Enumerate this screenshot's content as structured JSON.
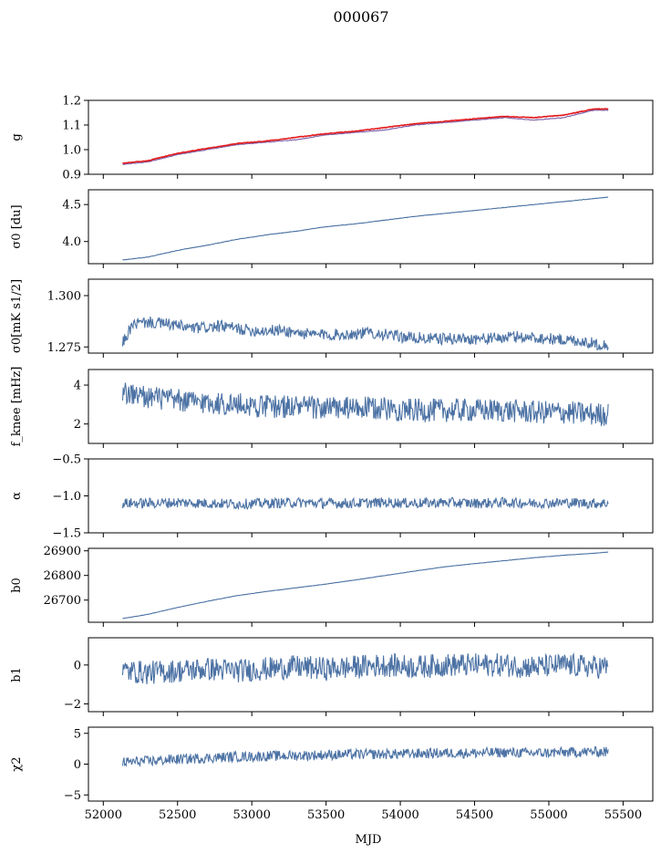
{
  "figure": {
    "title": "000067",
    "xlabel": "MJD",
    "xlim": [
      51900,
      55700
    ],
    "xticks": [
      52000,
      52500,
      53000,
      53500,
      54000,
      54500,
      55000,
      55500
    ],
    "series_color": "#4c72a4",
    "accent_color": "#e31a1c",
    "x_start": 52130,
    "x_end": 55400
  },
  "chart_data": [
    {
      "type": "line",
      "ylabel": "g",
      "ylim": [
        0.9,
        1.2
      ],
      "yticks": [
        "0.9",
        "1.0",
        "1.1",
        "1.2"
      ],
      "ytick_values": [
        0.9,
        1.0,
        1.1,
        1.2
      ],
      "series": [
        {
          "color": "#7b5ea7",
          "x": [
            52130,
            52300,
            52500,
            52700,
            52900,
            53100,
            53300,
            53500,
            53700,
            53900,
            54100,
            54300,
            54500,
            54700,
            54900,
            55100,
            55300,
            55400
          ],
          "y": [
            0.94,
            0.95,
            0.98,
            1.0,
            1.02,
            1.03,
            1.04,
            1.06,
            1.07,
            1.08,
            1.1,
            1.11,
            1.12,
            1.13,
            1.12,
            1.13,
            1.16,
            1.16
          ]
        },
        {
          "color": "#e31a1c",
          "x": [
            52130,
            52300,
            52500,
            52700,
            52900,
            53100,
            53300,
            53500,
            53700,
            53900,
            54100,
            54300,
            54500,
            54700,
            54900,
            55100,
            55300,
            55400
          ],
          "y": [
            0.945,
            0.955,
            0.985,
            1.005,
            1.025,
            1.035,
            1.05,
            1.065,
            1.075,
            1.09,
            1.105,
            1.115,
            1.125,
            1.135,
            1.13,
            1.14,
            1.165,
            1.165
          ]
        }
      ]
    },
    {
      "type": "line",
      "ylabel": "σ0 [du]",
      "ylim": [
        3.7,
        4.7
      ],
      "yticks": [
        "4.0",
        "4.5"
      ],
      "ytick_values": [
        4.0,
        4.5
      ],
      "series": [
        {
          "x": [
            52130,
            52300,
            52500,
            52700,
            52900,
            53100,
            53300,
            53500,
            53700,
            53900,
            54100,
            54300,
            54500,
            54700,
            54900,
            55100,
            55300,
            55400
          ],
          "y": [
            3.75,
            3.79,
            3.88,
            3.95,
            4.03,
            4.09,
            4.14,
            4.2,
            4.24,
            4.29,
            4.34,
            4.38,
            4.42,
            4.46,
            4.5,
            4.54,
            4.58,
            4.6
          ]
        }
      ]
    },
    {
      "type": "line",
      "ylabel": "σ0[mK s1/2]",
      "ylim": [
        1.272,
        1.308
      ],
      "yticks": [
        "1.275",
        "1.300"
      ],
      "ytick_values": [
        1.275,
        1.3
      ],
      "series": [
        {
          "x": [
            52130,
            52200,
            52300,
            52450,
            52600,
            52800,
            53000,
            53200,
            53400,
            53600,
            53800,
            54000,
            54200,
            54400,
            54600,
            54800,
            55000,
            55200,
            55350,
            55400
          ],
          "y": [
            1.277,
            1.286,
            1.287,
            1.286,
            1.284,
            1.285,
            1.283,
            1.283,
            1.281,
            1.281,
            1.282,
            1.28,
            1.279,
            1.279,
            1.279,
            1.28,
            1.279,
            1.278,
            1.276,
            1.276
          ]
        }
      ]
    },
    {
      "type": "line",
      "ylabel": "f_knee [mHz]",
      "ylim": [
        1.0,
        4.8
      ],
      "yticks": [
        "2",
        "4"
      ],
      "ytick_values": [
        2,
        4
      ],
      "series": [
        {
          "x": [
            52130,
            52300,
            52500,
            52700,
            52900,
            53100,
            53300,
            53500,
            53700,
            53900,
            54100,
            54300,
            54500,
            54700,
            54900,
            55100,
            55300,
            55400
          ],
          "y": [
            3.6,
            3.4,
            3.2,
            3.1,
            3.0,
            2.9,
            2.9,
            2.8,
            2.8,
            2.8,
            2.7,
            2.7,
            2.7,
            2.7,
            2.6,
            2.6,
            2.5,
            2.5
          ]
        }
      ]
    },
    {
      "type": "line",
      "ylabel": "α",
      "ylim": [
        -1.5,
        -0.5
      ],
      "yticks": [
        "−1.5",
        "−1.0",
        "−0.5"
      ],
      "ytick_values": [
        -1.5,
        -1.0,
        -0.5
      ],
      "series": [
        {
          "x": [
            52130,
            52300,
            52500,
            52700,
            52900,
            53100,
            53300,
            53500,
            53700,
            53900,
            54100,
            54300,
            54500,
            54700,
            54900,
            55100,
            55300,
            55400
          ],
          "y": [
            -1.1,
            -1.1,
            -1.09,
            -1.1,
            -1.11,
            -1.1,
            -1.09,
            -1.1,
            -1.1,
            -1.09,
            -1.1,
            -1.09,
            -1.1,
            -1.09,
            -1.1,
            -1.09,
            -1.1,
            -1.1
          ]
        }
      ]
    },
    {
      "type": "line",
      "ylabel": "b0",
      "ylim": [
        26610,
        26910
      ],
      "yticks": [
        "26700",
        "26800",
        "26900"
      ],
      "ytick_values": [
        26700,
        26800,
        26900
      ],
      "series": [
        {
          "x": [
            52130,
            52300,
            52500,
            52700,
            52900,
            53100,
            53300,
            53500,
            53700,
            53900,
            54100,
            54300,
            54500,
            54700,
            54900,
            55100,
            55300,
            55400
          ],
          "y": [
            26625,
            26642,
            26670,
            26695,
            26718,
            26735,
            26750,
            26765,
            26782,
            26800,
            26818,
            26835,
            26848,
            26860,
            26872,
            26882,
            26890,
            26895
          ]
        }
      ]
    },
    {
      "type": "line",
      "ylabel": "b1",
      "ylim": [
        -2.4,
        1.4
      ],
      "yticks": [
        "−2",
        "0"
      ],
      "ytick_values": [
        -2,
        0
      ],
      "series": [
        {
          "x": [
            52130,
            52300,
            52500,
            52700,
            52900,
            53100,
            53300,
            53500,
            53700,
            53900,
            54100,
            54300,
            54500,
            54700,
            54900,
            55100,
            55300,
            55400
          ],
          "y": [
            -0.3,
            -0.4,
            -0.3,
            -0.2,
            -0.3,
            -0.2,
            -0.1,
            -0.2,
            -0.1,
            0.0,
            -0.1,
            0.0,
            0.0,
            0.0,
            -0.1,
            0.0,
            -0.1,
            -0.1
          ]
        }
      ]
    },
    {
      "type": "line",
      "ylabel": "χ2",
      "ylim": [
        -6,
        6
      ],
      "yticks": [
        "−5",
        "0",
        "5"
      ],
      "ytick_values": [
        -5,
        0,
        5
      ],
      "series": [
        {
          "x": [
            52130,
            52300,
            52500,
            52700,
            52900,
            53100,
            53300,
            53500,
            53700,
            53900,
            54100,
            54300,
            54500,
            54700,
            54900,
            55100,
            55300,
            55400
          ],
          "y": [
            0.3,
            0.5,
            0.8,
            1.0,
            1.2,
            1.3,
            1.4,
            1.5,
            1.6,
            1.6,
            1.7,
            1.8,
            1.8,
            1.9,
            1.8,
            1.9,
            2.0,
            2.0
          ]
        }
      ]
    }
  ]
}
